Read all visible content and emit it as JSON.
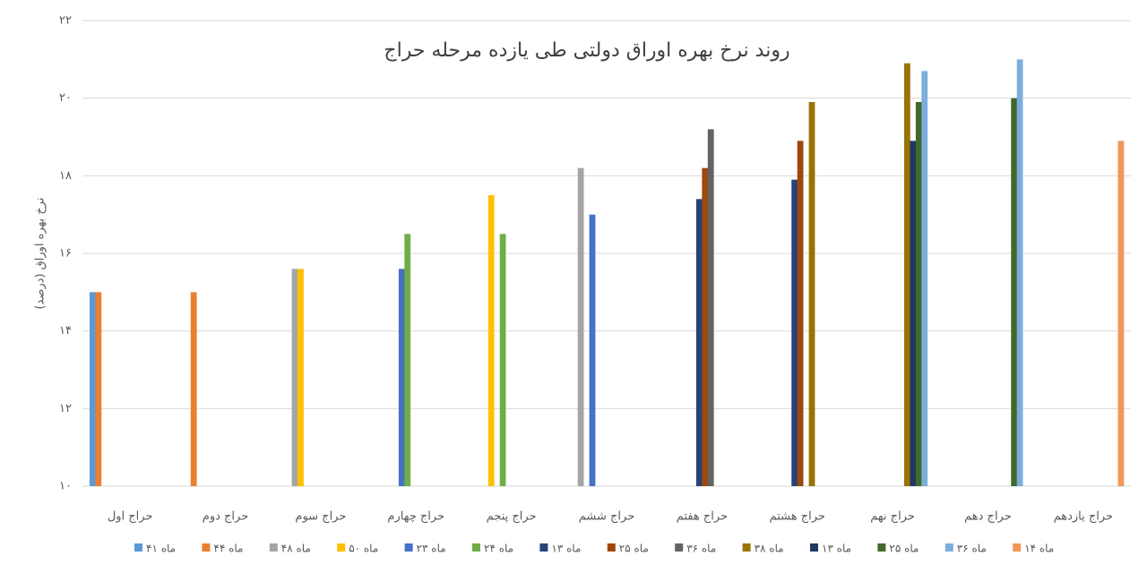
{
  "chart_data": {
    "type": "bar",
    "title": "روند نرخ بهره اوراق دولتی طی یازده مرحله حراج",
    "y_label": "نرخ بهره اوراق (درصد)",
    "categories": [
      "حراج اول",
      "حراج دوم",
      "حراج سوم",
      "حراج چهارم",
      "حراج پنجم",
      "حراج ششم",
      "حراج هفتم",
      "حراج هشتم",
      "حراج نهم",
      "حراج دهم",
      "حراج یازدهم"
    ],
    "series": [
      {
        "name": "ماه ۴۱",
        "color": "#5b9bd5",
        "values": [
          15,
          null,
          null,
          null,
          null,
          null,
          null,
          null,
          null,
          null,
          null
        ]
      },
      {
        "name": "ماه ۴۴",
        "color": "#ed7d31",
        "values": [
          15,
          15,
          null,
          null,
          null,
          null,
          null,
          null,
          null,
          null,
          null
        ]
      },
      {
        "name": "ماه ۴۸",
        "color": "#a5a5a5",
        "values": [
          null,
          null,
          15.6,
          null,
          null,
          18.2,
          null,
          null,
          null,
          null,
          null
        ]
      },
      {
        "name": "ماه ۵۰",
        "color": "#ffc000",
        "values": [
          null,
          null,
          15.6,
          null,
          17.5,
          null,
          null,
          null,
          null,
          null,
          null
        ]
      },
      {
        "name": "ماه ۲۳",
        "color": "#4472c4",
        "values": [
          null,
          null,
          null,
          15.6,
          null,
          17,
          null,
          null,
          null,
          null,
          null
        ]
      },
      {
        "name": "ماه ۲۴",
        "color": "#70ad47",
        "values": [
          null,
          null,
          null,
          16.5,
          16.5,
          null,
          null,
          null,
          null,
          null,
          null
        ]
      },
      {
        "name": "ماه ۱۳",
        "color": "#264478",
        "values": [
          null,
          null,
          null,
          null,
          null,
          null,
          17.4,
          17.9,
          null,
          null,
          null
        ]
      },
      {
        "name": "ماه ۲۵",
        "color": "#9e480e",
        "values": [
          null,
          null,
          null,
          null,
          null,
          null,
          18.2,
          18.9,
          null,
          null,
          null
        ]
      },
      {
        "name": "ماه ۳۶",
        "color": "#636363",
        "values": [
          null,
          null,
          null,
          null,
          null,
          null,
          19.2,
          null,
          null,
          null,
          null
        ]
      },
      {
        "name": "ماه ۳۸",
        "color": "#997300",
        "values": [
          null,
          null,
          null,
          null,
          null,
          null,
          null,
          19.9,
          20.9,
          null,
          null
        ]
      },
      {
        "name": "ماه ۱۳",
        "color": "#1f3864",
        "values": [
          null,
          null,
          null,
          null,
          null,
          null,
          null,
          null,
          18.9,
          null,
          null
        ]
      },
      {
        "name": "ماه ۲۵",
        "color": "#43682b",
        "values": [
          null,
          null,
          null,
          null,
          null,
          null,
          null,
          null,
          19.9,
          20,
          null
        ]
      },
      {
        "name": "ماه ۳۶",
        "color": "#7cafdd",
        "values": [
          null,
          null,
          null,
          null,
          null,
          null,
          null,
          null,
          20.7,
          21,
          null
        ]
      },
      {
        "name": "ماه ۱۴",
        "color": "#f1975a",
        "values": [
          null,
          null,
          null,
          null,
          null,
          null,
          null,
          null,
          null,
          null,
          18.9
        ]
      }
    ],
    "ylim": [
      10,
      22
    ],
    "yticks": [
      {
        "value": 10,
        "label": "۱۰"
      },
      {
        "value": 12,
        "label": "۱۲"
      },
      {
        "value": 14,
        "label": "۱۴"
      },
      {
        "value": 16,
        "label": "۱۶"
      },
      {
        "value": 18,
        "label": "۱۸"
      },
      {
        "value": 20,
        "label": "۲۰"
      },
      {
        "value": 22,
        "label": "۲۲"
      }
    ],
    "grid": true
  }
}
